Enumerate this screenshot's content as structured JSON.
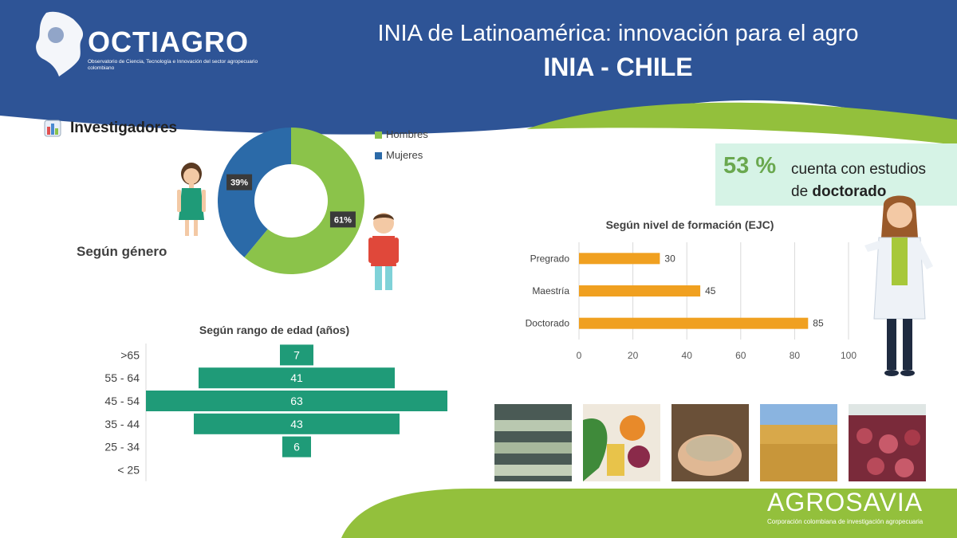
{
  "header": {
    "brand": "OCTIAGRO",
    "brand_sub": "Observatorio de Ciencia, Tecnología e Innovación del sector agropecuario colombiano",
    "title": "INIA de Latinoamérica: innovación para el agro",
    "subtitle": "INIA - CHILE"
  },
  "section": {
    "title": "Investigadores",
    "gender_label": "Según género"
  },
  "callout": {
    "percent": "53 %",
    "line1": "cuenta con estudios",
    "line2_prefix": "de ",
    "line2_bold": "doctorado"
  },
  "footer": {
    "brand": "AGROSAVIA",
    "tagline": "Corporación colombiana de investigación agropecuaria"
  },
  "colors": {
    "header_blue": "#2e5496",
    "green": "#8bc34a",
    "blue": "#2b6aa8",
    "orange": "#f0a020",
    "teal": "#1f9b78",
    "lime": "#93c03c"
  },
  "chart_data": [
    {
      "type": "pie",
      "categories": [
        "Hombres",
        "Mujeres"
      ],
      "values": [
        61,
        39
      ],
      "labels": [
        "61%",
        "39%"
      ],
      "colors": [
        "#8bc34a",
        "#2b6aa8"
      ],
      "legend": "right"
    },
    {
      "type": "bar",
      "orientation": "horizontal",
      "title": "Según nivel de formación (EJC)",
      "categories": [
        "Pregrado",
        "Maestría",
        "Doctorado"
      ],
      "values": [
        30,
        45,
        85
      ],
      "xlim": [
        0,
        100
      ],
      "xticks": [
        0,
        20,
        40,
        60,
        80,
        100
      ],
      "grid": true,
      "color": "#f0a020"
    },
    {
      "type": "bar",
      "orientation": "horizontal",
      "style": "centered",
      "title": "Según rango de edad (años)",
      "categories": [
        ">65",
        "55 - 64",
        "45 - 54",
        "35 - 44",
        "25 - 34",
        "< 25"
      ],
      "values": [
        7,
        41,
        63,
        43,
        6,
        null
      ],
      "color": "#1f9b78"
    }
  ]
}
